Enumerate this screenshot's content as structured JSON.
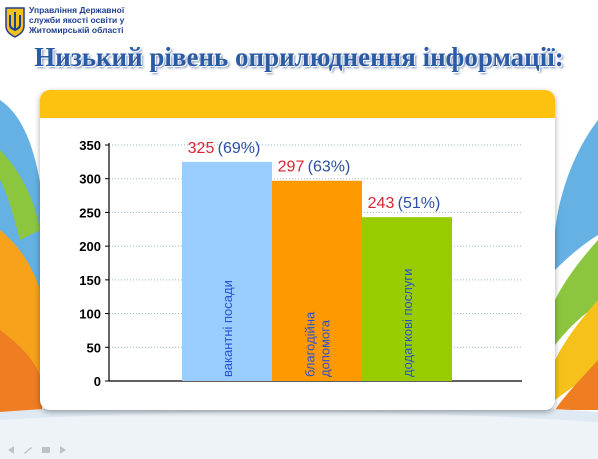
{
  "header": {
    "org_lines": [
      "Управління Державної",
      "служби якості освіти у",
      "Житомирській області"
    ],
    "emblem_icon": "trident-coat-of-arms-icon"
  },
  "title": "Низький рівень оприлюднення інформації:",
  "colors": {
    "accent_band": "#fcc20f",
    "value_text": "#d8262f",
    "percent_text": "#2b4fa0",
    "category_text": "#2a4fd6"
  },
  "chart_data": {
    "type": "bar",
    "categories": [
      "вакантні посади",
      "благодійна допомога",
      "додаткові послуги"
    ],
    "category_lines": [
      [
        "вакантні посади"
      ],
      [
        "благодійна",
        "допомога"
      ],
      [
        "додаткові послуги"
      ]
    ],
    "values": [
      325,
      297,
      243
    ],
    "value_labels": [
      "325",
      "297",
      "243"
    ],
    "percent_labels": [
      "(69%)",
      "(63%)",
      "(51%)"
    ],
    "bar_colors": [
      "#99ccff",
      "#ff9900",
      "#99cc00"
    ],
    "ylim": [
      0,
      350
    ],
    "yticks": [
      0,
      50,
      100,
      150,
      200,
      250,
      300,
      350
    ],
    "ytick_labels": [
      "0",
      "50",
      "100",
      "150",
      "200",
      "250",
      "300",
      "350"
    ],
    "grid": true,
    "title": "",
    "xlabel": "",
    "ylabel": ""
  },
  "slideshow_controls": [
    "previous-icon",
    "pen-icon",
    "menu-icon",
    "next-icon"
  ]
}
